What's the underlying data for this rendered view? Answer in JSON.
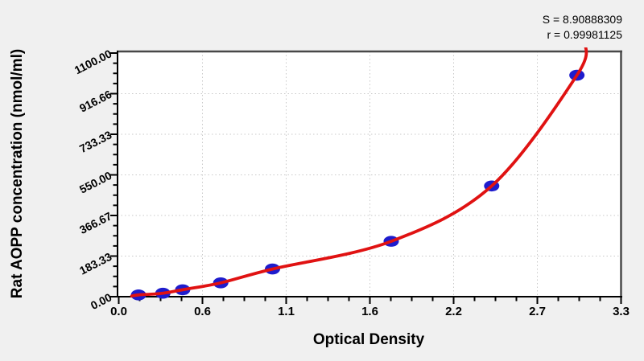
{
  "stats": {
    "s_label": "S = 8.90888309",
    "r_label": "r = 0.99981125"
  },
  "chart_data": {
    "type": "scatter",
    "title": "",
    "xlabel": "Optical Density",
    "ylabel": "Rat AOPP concentration (nmol/ml)",
    "xlim": [
      0,
      3.3
    ],
    "ylim": [
      0,
      1100
    ],
    "x_tick_values": [
      0,
      0.55,
      1.1,
      1.65,
      2.2,
      2.75,
      3.3
    ],
    "x_tick_labels": [
      "0.0",
      "0.6",
      "1.1",
      "1.6",
      "2.2",
      "2.7",
      "3.3"
    ],
    "y_tick_values": [
      0,
      183.33,
      366.67,
      550,
      733.33,
      916.66,
      1100
    ],
    "y_tick_labels": [
      "0.00",
      "183.33",
      "366.67",
      "550.00",
      "733.33",
      "916.66",
      "1100.00"
    ],
    "minor_divisions": 4,
    "grid": "dotted at major ticks",
    "legend": "none",
    "series": [
      {
        "name": "standard-points",
        "type": "scatter",
        "x": [
          0.13,
          0.29,
          0.42,
          0.67,
          1.01,
          1.79,
          2.45,
          3.01
        ],
        "y": [
          7.81,
          15.63,
          31.25,
          62.5,
          125,
          250,
          500,
          1000
        ]
      },
      {
        "name": "fitted-curve",
        "type": "line",
        "through_series": "standard-points",
        "start": [
          0.085,
          3
        ],
        "end": [
          3.065,
          1145
        ]
      }
    ],
    "fit_stats": {
      "S": 8.90888309,
      "r": 0.99981125
    },
    "colors": {
      "curve": "#e01212",
      "points": "#1e1ccd",
      "background": "#f0f0f0",
      "plot_bg": "#ffffff",
      "grid": "#c9c9c9",
      "frame": "#484848",
      "axis": "#000000",
      "text": "#000000"
    }
  }
}
